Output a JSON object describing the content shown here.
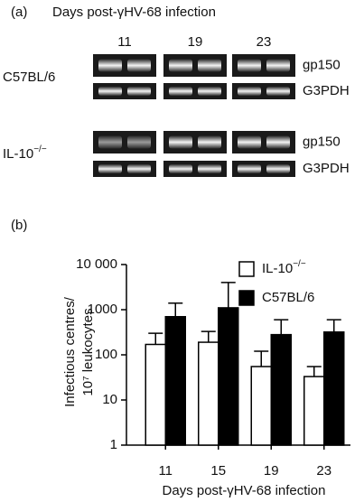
{
  "panel_a": {
    "label": "(a)",
    "title": "Days post-γHV-68 infection",
    "days": [
      "11",
      "19",
      "23"
    ],
    "groups": [
      {
        "name": "C57BL/6",
        "genes": [
          "gp150",
          "G3PDH"
        ]
      },
      {
        "name": "IL-10",
        "name_superscript": "−/−",
        "genes": [
          "gp150",
          "G3PDH"
        ]
      }
    ]
  },
  "chart_data": {
    "type": "bar",
    "panel_label": "(b)",
    "x_label": "Days post-γHV-68 infection",
    "y_label": [
      "Infectious centres/",
      "10⁷ leukocytes"
    ],
    "categories": [
      "11",
      "15",
      "19",
      "23"
    ],
    "log_y": true,
    "ylim": [
      1,
      10000
    ],
    "yticks": [
      1,
      10,
      100,
      1000,
      {
        "value": 10000,
        "label": "10 000"
      }
    ],
    "legend": "upper right",
    "series": [
      {
        "name": "IL-10",
        "name_superscript": "−/−",
        "color": "#ffffff",
        "values": [
          170,
          190,
          55,
          33
        ],
        "errors": [
          130,
          140,
          65,
          22
        ]
      },
      {
        "name": "C57BL/6",
        "color": "#000000",
        "values": [
          700,
          1100,
          280,
          320
        ],
        "errors": [
          700,
          2900,
          320,
          280
        ]
      }
    ]
  }
}
